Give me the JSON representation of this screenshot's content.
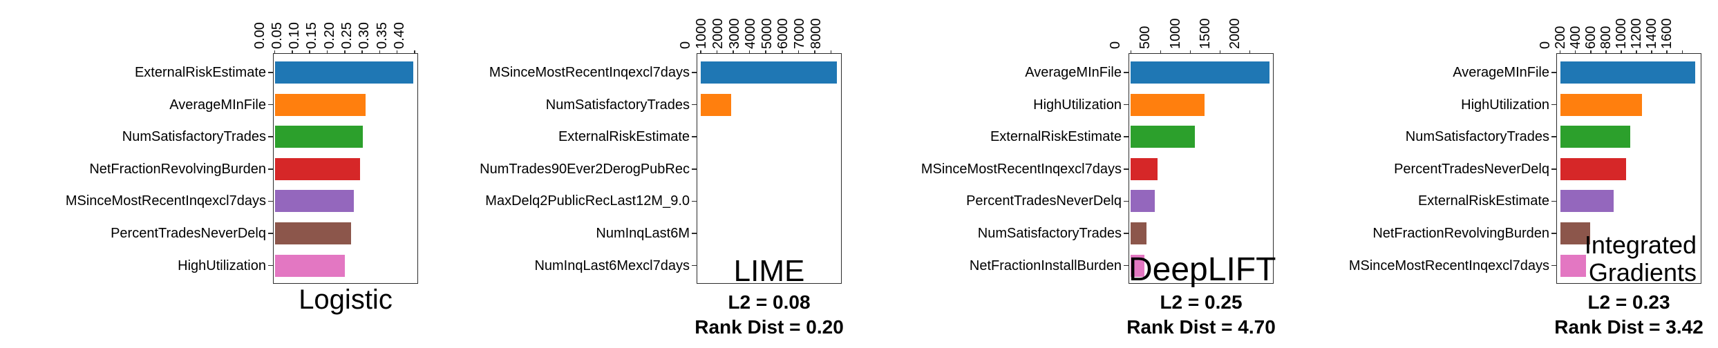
{
  "figure": {
    "background": "#ffffff",
    "axis_color": "#2b2b2b",
    "text_color": "#000000"
  },
  "palette": {
    "blue": "#1f77b4",
    "orange": "#ff7f0e",
    "green": "#2ca02c",
    "red": "#d62728",
    "purple": "#9467bd",
    "brown": "#8c564b",
    "pink": "#e377c2"
  },
  "chart_data": [
    {
      "type": "bar",
      "orientation": "horizontal",
      "id": "logistic",
      "inner_title": null,
      "below_title": {
        "lines": [
          "Logistic"
        ],
        "bold": false
      },
      "categories": [
        "ExternalRiskEstimate",
        "AverageMInFile",
        "NumSatisfactoryTrades",
        "NetFractionRevolvingBurden",
        "MSinceMostRecentInqexcl7days",
        "PercentTradesNeverDelq",
        "HighUtilization"
      ],
      "values": [
        0.397,
        0.26,
        0.252,
        0.244,
        0.226,
        0.219,
        0.201
      ],
      "bar_colors": [
        "#1f77b4",
        "#ff7f0e",
        "#2ca02c",
        "#d62728",
        "#9467bd",
        "#8c564b",
        "#e377c2"
      ],
      "xticks": [
        0,
        0.05,
        0.1,
        0.15,
        0.2,
        0.25,
        0.3,
        0.35,
        0.4
      ],
      "xtick_labels": [
        "0.00",
        "0.05",
        "0.10",
        "0.15",
        "0.20",
        "0.25",
        "0.30",
        "0.35",
        "0.40"
      ],
      "xlim": [
        -0.005,
        0.41
      ],
      "grid": false
    },
    {
      "type": "bar",
      "orientation": "horizontal",
      "id": "lime",
      "inner_title": {
        "lines": [
          "LIME"
        ],
        "align": "center"
      },
      "below_title": {
        "lines": [
          "L2 = 0.08",
          "Rank Dist = 0.20"
        ],
        "bold": true
      },
      "categories": [
        "MSinceMostRecentInqexcl7days",
        "NumSatisfactoryTrades",
        "ExternalRiskEstimate",
        "NumTrades90Ever2DerogPubRec",
        "MaxDelq2PublicRecLast12M_9.0",
        "NumInqLast6M",
        "NumInqLast6Mexcl7days"
      ],
      "values": [
        8350,
        1850,
        0,
        0,
        0,
        0,
        0
      ],
      "bar_colors": [
        "#1f77b4",
        "#ff7f0e",
        "#2ca02c",
        "#d62728",
        "#9467bd",
        "#8c564b",
        "#e377c2"
      ],
      "xticks": [
        0,
        1000,
        2000,
        3000,
        4000,
        5000,
        6000,
        7000,
        8000
      ],
      "xtick_labels": [
        "0",
        "1000",
        "2000",
        "3000",
        "4000",
        "5000",
        "6000",
        "7000",
        "8000"
      ],
      "xlim": [
        -250,
        8650
      ],
      "grid": false
    },
    {
      "type": "bar",
      "orientation": "horizontal",
      "id": "deeplift",
      "inner_title": {
        "lines": [
          "DeepLIFT"
        ],
        "align": "center"
      },
      "below_title": {
        "lines": [
          "L2 = 0.25",
          "Rank Dist = 4.70"
        ],
        "bold": true
      },
      "categories": [
        "AverageMInFile",
        "HighUtilization",
        "ExternalRiskEstimate",
        "MSinceMostRecentInqexcl7days",
        "PercentTradesNeverDelq",
        "NumSatisfactoryTrades",
        "NetFractionInstallBurden"
      ],
      "values": [
        2330,
        1240,
        1075,
        450,
        405,
        260,
        225
      ],
      "bar_colors": [
        "#1f77b4",
        "#ff7f0e",
        "#2ca02c",
        "#d62728",
        "#9467bd",
        "#8c564b",
        "#e377c2"
      ],
      "xticks": [
        0,
        500,
        1000,
        1500,
        2000
      ],
      "xtick_labels": [
        "0",
        "500",
        "1000",
        "1500",
        "2000"
      ],
      "xlim": [
        -40,
        2400
      ],
      "grid": false
    },
    {
      "type": "bar",
      "orientation": "horizontal",
      "id": "integrated-gradients",
      "inner_title": {
        "lines": [
          "Integrated",
          "Gradients"
        ],
        "align": "right"
      },
      "below_title": {
        "lines": [
          "L2 = 0.23",
          "Rank Dist = 3.42"
        ],
        "bold": true
      },
      "categories": [
        "AverageMInFile",
        "HighUtilization",
        "NumSatisfactoryTrades",
        "PercentTradesNeverDelq",
        "ExternalRiskEstimate",
        "NetFractionRevolvingBurden",
        "MSinceMostRecentInqexcl7days"
      ],
      "values": [
        1765,
        1075,
        915,
        860,
        705,
        395,
        335
      ],
      "bar_colors": [
        "#1f77b4",
        "#ff7f0e",
        "#2ca02c",
        "#d62728",
        "#9467bd",
        "#8c564b",
        "#e377c2"
      ],
      "xticks": [
        0,
        200,
        400,
        600,
        800,
        1000,
        1200,
        1400,
        1600
      ],
      "xtick_labels": [
        "0",
        "200",
        "400",
        "600",
        "800",
        "1000",
        "1200",
        "1400",
        "1600"
      ],
      "xlim": [
        -50,
        1850
      ],
      "grid": false
    }
  ]
}
